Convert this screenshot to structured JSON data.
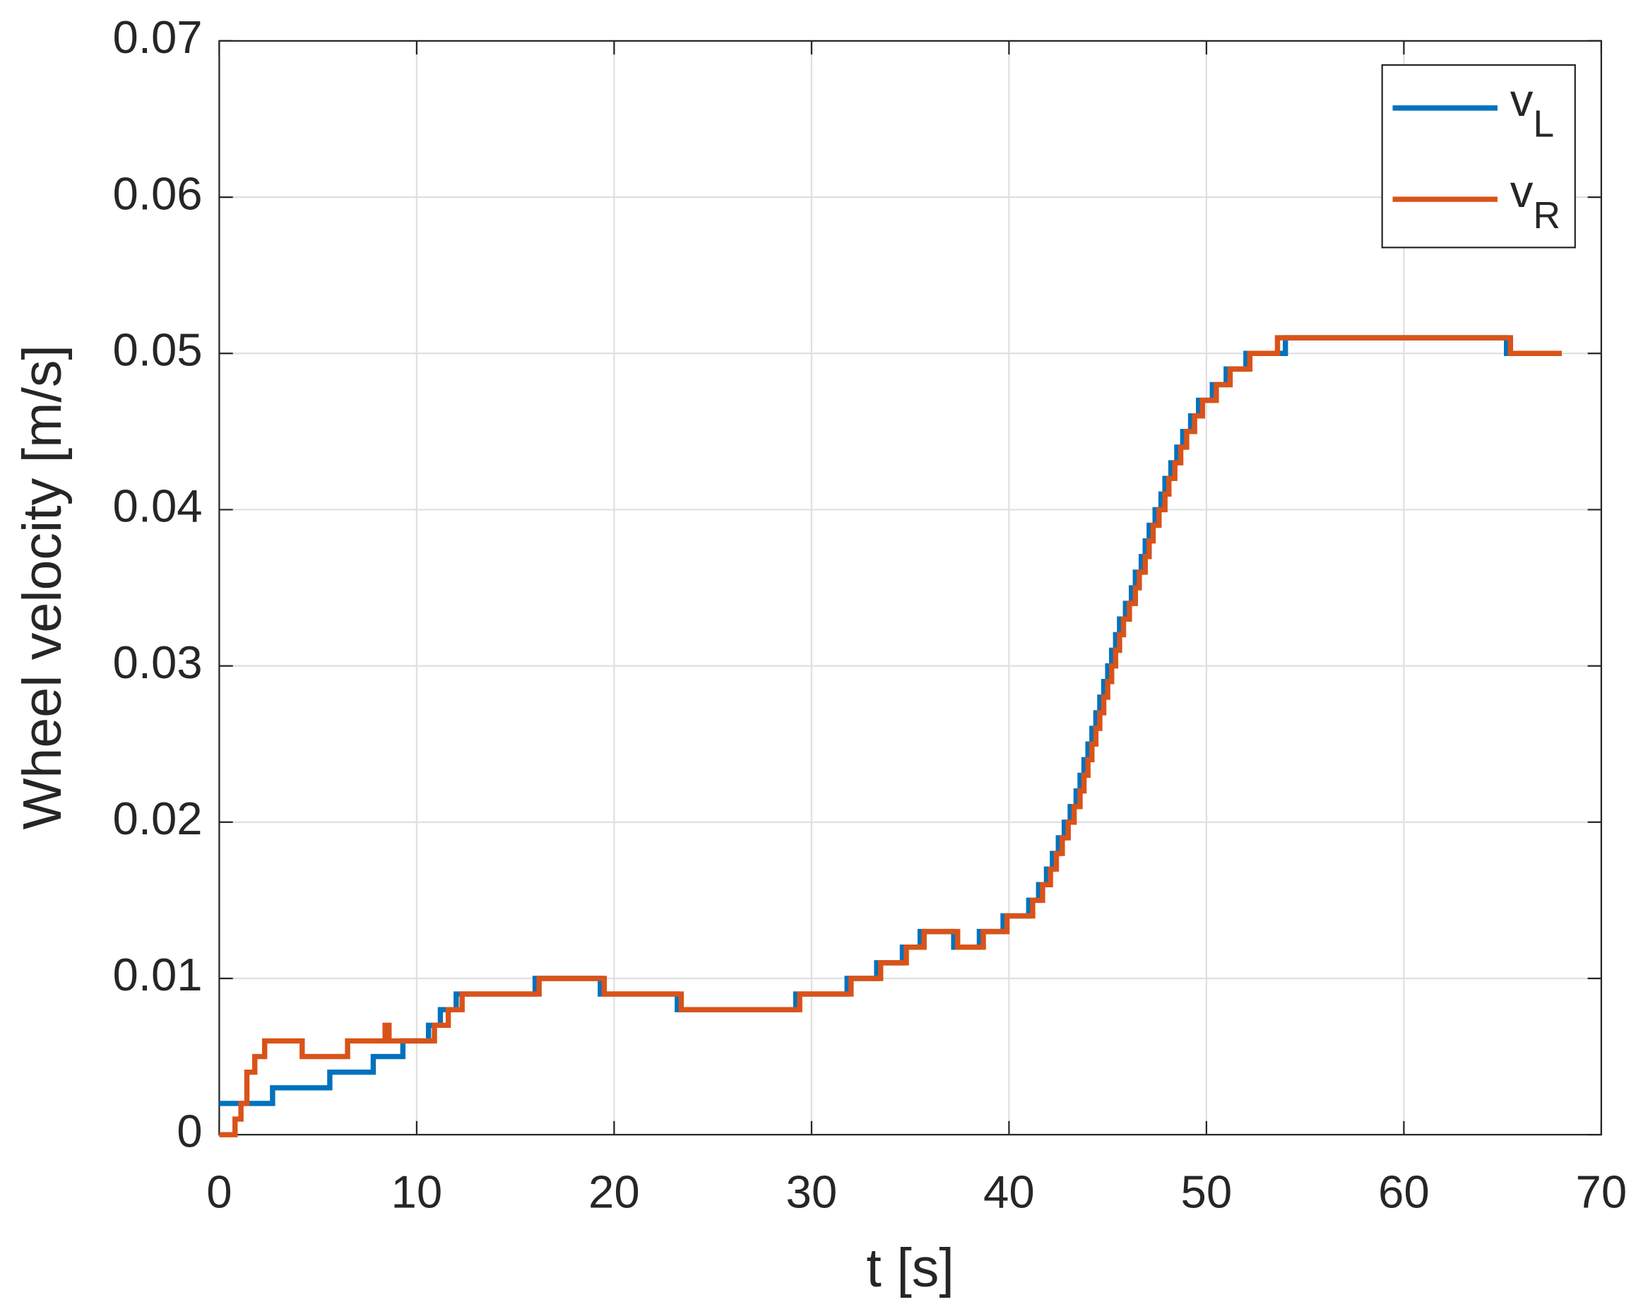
{
  "chart_data": {
    "type": "line",
    "step": true,
    "xlabel": "t [s]",
    "ylabel": "Wheel velocity [m/s]",
    "xlim": [
      0,
      70
    ],
    "xticks": [
      0,
      10,
      20,
      30,
      40,
      50,
      60,
      70
    ],
    "ylim": [
      0,
      0.07
    ],
    "yticks": [
      0,
      0.01,
      0.02,
      0.03,
      0.04,
      0.05,
      0.06,
      0.07
    ],
    "grid": true,
    "legend": "upper right",
    "series": [
      {
        "name": "vL",
        "color": "#0072BD",
        "x": [
          0,
          2.7,
          5.6,
          7.8,
          9.3,
          10.6,
          11.2,
          12,
          16,
          19.3,
          23.2,
          29.2,
          31.8,
          33.3,
          34.6,
          35.5,
          37.2,
          38.5,
          39.7,
          41,
          41.5,
          41.9,
          42.2,
          42.5,
          42.8,
          43.1,
          43.4,
          43.6,
          43.8,
          44.0,
          44.2,
          44.4,
          44.6,
          44.8,
          45.0,
          45.2,
          45.4,
          45.6,
          45.9,
          46.2,
          46.4,
          46.7,
          46.9,
          47.1,
          47.4,
          47.7,
          47.9,
          48.2,
          48.5,
          48.8,
          49.2,
          49.6,
          50.3,
          51.0,
          52.0,
          54.0,
          65.2,
          68
        ],
        "values": [
          0.002,
          0.003,
          0.004,
          0.005,
          0.006,
          0.007,
          0.008,
          0.009,
          0.01,
          0.009,
          0.008,
          0.009,
          0.01,
          0.011,
          0.012,
          0.013,
          0.012,
          0.013,
          0.014,
          0.015,
          0.016,
          0.017,
          0.018,
          0.019,
          0.02,
          0.021,
          0.022,
          0.023,
          0.024,
          0.025,
          0.026,
          0.027,
          0.028,
          0.029,
          0.03,
          0.031,
          0.032,
          0.033,
          0.034,
          0.035,
          0.036,
          0.037,
          0.038,
          0.039,
          0.04,
          0.041,
          0.042,
          0.043,
          0.044,
          0.045,
          0.046,
          0.047,
          0.048,
          0.049,
          0.05,
          0.051,
          0.05,
          0.05
        ]
      },
      {
        "name": "vR",
        "color": "#D95319",
        "x": [
          0,
          0.8,
          1.1,
          1.4,
          1.8,
          2.3,
          4.2,
          6.5,
          8.4,
          8.6,
          9.8,
          10.9,
          11.6,
          12.3,
          16.2,
          19.5,
          23.4,
          29.4,
          32.0,
          33.5,
          34.8,
          35.7,
          37.4,
          38.7,
          39.9,
          41.2,
          41.7,
          42.1,
          42.4,
          42.7,
          43.0,
          43.3,
          43.6,
          43.8,
          44.0,
          44.2,
          44.4,
          44.6,
          44.8,
          45.0,
          45.2,
          45.4,
          45.6,
          45.8,
          46.1,
          46.4,
          46.6,
          46.9,
          47.1,
          47.3,
          47.6,
          47.9,
          48.1,
          48.4,
          48.7,
          49.0,
          49.4,
          49.8,
          50.5,
          51.2,
          52.2,
          53.6,
          65.4,
          68
        ],
        "values": [
          0.0,
          0.001,
          0.002,
          0.004,
          0.005,
          0.006,
          0.005,
          0.006,
          0.007,
          0.006,
          0.006,
          0.007,
          0.008,
          0.009,
          0.01,
          0.009,
          0.008,
          0.009,
          0.01,
          0.011,
          0.012,
          0.013,
          0.012,
          0.013,
          0.014,
          0.015,
          0.016,
          0.017,
          0.018,
          0.019,
          0.02,
          0.021,
          0.022,
          0.023,
          0.024,
          0.025,
          0.026,
          0.027,
          0.028,
          0.029,
          0.03,
          0.031,
          0.032,
          0.033,
          0.034,
          0.035,
          0.036,
          0.037,
          0.038,
          0.039,
          0.04,
          0.041,
          0.042,
          0.043,
          0.044,
          0.045,
          0.046,
          0.047,
          0.048,
          0.049,
          0.05,
          0.051,
          0.05,
          0.05
        ]
      }
    ]
  }
}
